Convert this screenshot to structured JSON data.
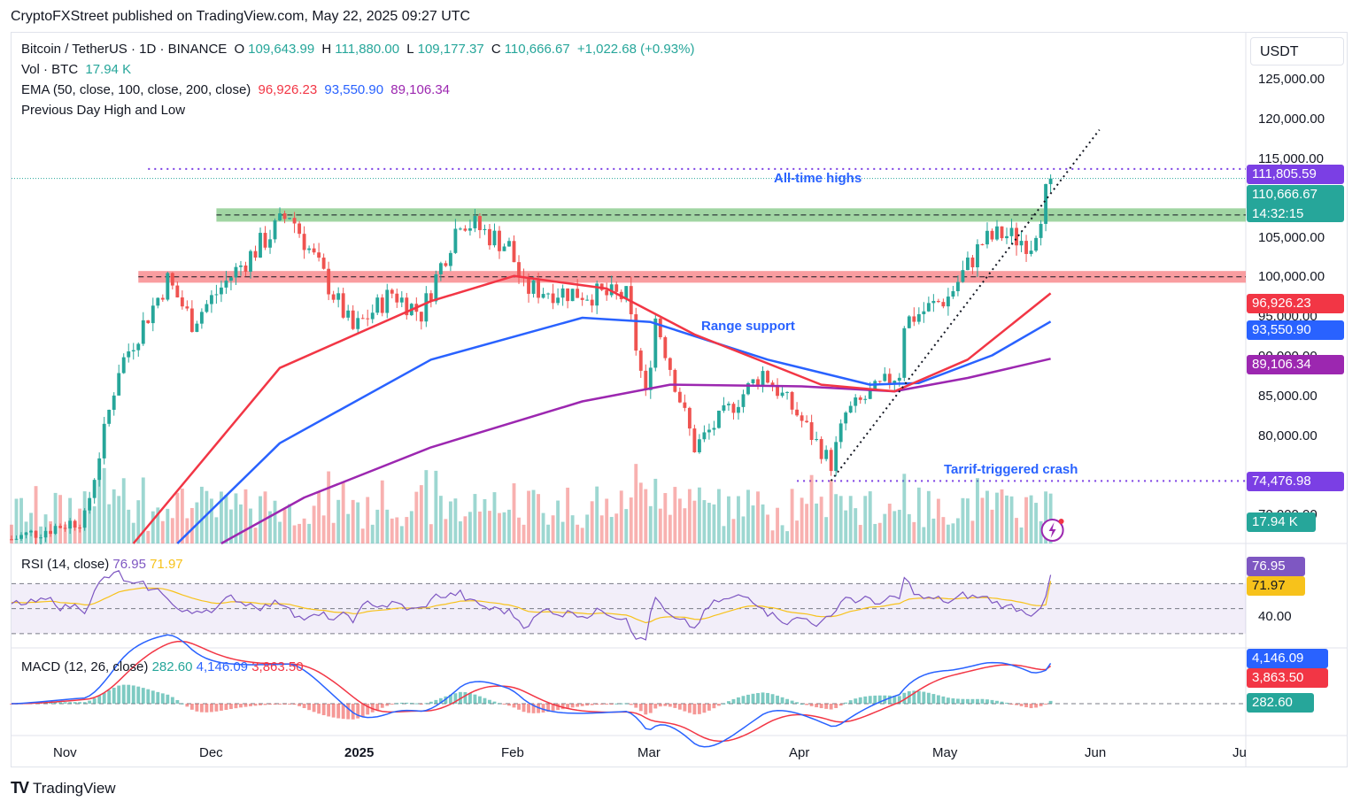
{
  "publisher": "CryptoFXStreet published on TradingView.com, May 22, 2025 09:27 UTC",
  "header": {
    "symbol": "Bitcoin / TetherUS · 1D · BINANCE",
    "open_label": "O",
    "open": "109,643.99",
    "high_label": "H",
    "high": "111,880.00",
    "low_label": "L",
    "low": "109,177.37",
    "close_label": "C",
    "close": "110,666.67",
    "change": "+1,022.68 (+0.93%)",
    "vol_label": "Vol · BTC",
    "vol": "17.94 K",
    "ema_label": "EMA (50, close, 100, close, 200, close)",
    "ema50": "96,926.23",
    "ema100": "93,550.90",
    "ema200": "89,106.34",
    "pdhl_label": "Previous Day High and Low"
  },
  "currency": "USDT",
  "annotations": {
    "ath": "All-time highs",
    "range_support": "Range support",
    "crash": "Tarrif-triggered crash"
  },
  "price_axis": {
    "ticks": [
      "125,000.00",
      "120,000.00",
      "115,000.00",
      "105,000.00",
      "100,000.00",
      "95,000.00",
      "90,000.00",
      "85,000.00",
      "80,000.00",
      "70,000.00"
    ],
    "pills": {
      "ath": "111,805.59",
      "last": "110,666.67",
      "countdown": "14:32:15",
      "ema50": "96,926.23",
      "ema100": "93,550.90",
      "ema200": "89,106.34",
      "crash": "74,476.98",
      "volume": "17.94 K"
    }
  },
  "rsi": {
    "label": "RSI (14, close)",
    "value": "76.95",
    "ma": "71.97",
    "tick": "40.00"
  },
  "macd": {
    "label": "MACD (12, 26, close)",
    "hist": "282.60",
    "macd": "4,146.09",
    "signal": "3,863.50"
  },
  "time_axis": [
    "Nov",
    "Dec",
    "2025",
    "Feb",
    "Mar",
    "Apr",
    "May",
    "Jun",
    "Ju"
  ],
  "footer": {
    "logo": "TV",
    "brand": "TradingView"
  },
  "colors": {
    "up": "#26a69a",
    "down": "#ef5350",
    "ema50": "#f23645",
    "ema100": "#2962ff",
    "ema200": "#9c27b0",
    "rsi": "#7e57c2",
    "rsi_ma": "#f7c21b",
    "macd": "#2962ff",
    "signal": "#f23645"
  },
  "chart_data": {
    "type": "candlestick",
    "x_range": [
      "2024-10-21",
      "2025-07-01"
    ],
    "y_range": [
      67000,
      128000
    ],
    "levels": {
      "ath": 111805.59,
      "resistance_zone": [
        105500,
        107100
      ],
      "support_zone": [
        98200,
        99600
      ],
      "crash_low": 74476.98
    },
    "trendline": [
      {
        "date": "2025-04-07",
        "price": 74500
      },
      {
        "date": "2025-06-01",
        "price": 116500
      }
    ],
    "anchors": [
      {
        "date": "2024-10-21",
        "price": 67500
      },
      {
        "date": "2024-11-05",
        "price": 70000
      },
      {
        "date": "2024-11-12",
        "price": 88000
      },
      {
        "date": "2024-11-22",
        "price": 98500
      },
      {
        "date": "2024-11-27",
        "price": 93500
      },
      {
        "date": "2024-12-05",
        "price": 99000
      },
      {
        "date": "2024-12-17",
        "price": 106500
      },
      {
        "date": "2024-12-30",
        "price": 92500
      },
      {
        "date": "2025-01-07",
        "price": 97000
      },
      {
        "date": "2025-01-13",
        "price": 94500
      },
      {
        "date": "2025-01-21",
        "price": 106000
      },
      {
        "date": "2025-01-31",
        "price": 102500
      },
      {
        "date": "2025-02-03",
        "price": 97500
      },
      {
        "date": "2025-02-24",
        "price": 96500
      },
      {
        "date": "2025-02-28",
        "price": 84500
      },
      {
        "date": "2025-03-02",
        "price": 94000
      },
      {
        "date": "2025-03-10",
        "price": 78500
      },
      {
        "date": "2025-03-24",
        "price": 87500
      },
      {
        "date": "2025-03-31",
        "price": 82500
      },
      {
        "date": "2025-04-07",
        "price": 76500
      },
      {
        "date": "2025-04-10",
        "price": 82500
      },
      {
        "date": "2025-04-21",
        "price": 87500
      },
      {
        "date": "2025-04-22",
        "price": 93500
      },
      {
        "date": "2025-05-01",
        "price": 96500
      },
      {
        "date": "2025-05-08",
        "price": 103000
      },
      {
        "date": "2025-05-12",
        "price": 104000
      },
      {
        "date": "2025-05-18",
        "price": 103000
      },
      {
        "date": "2025-05-20",
        "price": 106800
      },
      {
        "date": "2025-05-22",
        "price": 110666.67
      }
    ],
    "ema50": [
      {
        "date": "2024-11-15",
        "price": 67000
      },
      {
        "date": "2024-12-15",
        "price": 88000
      },
      {
        "date": "2025-01-15",
        "price": 96000
      },
      {
        "date": "2025-02-01",
        "price": 99000
      },
      {
        "date": "2025-02-20",
        "price": 97500
      },
      {
        "date": "2025-03-10",
        "price": 92000
      },
      {
        "date": "2025-04-05",
        "price": 86000
      },
      {
        "date": "2025-04-20",
        "price": 85200
      },
      {
        "date": "2025-05-05",
        "price": 89000
      },
      {
        "date": "2025-05-22",
        "price": 96926.23
      }
    ],
    "ema100": [
      {
        "date": "2024-11-24",
        "price": 67000
      },
      {
        "date": "2024-12-15",
        "price": 79000
      },
      {
        "date": "2025-01-15",
        "price": 89000
      },
      {
        "date": "2025-02-15",
        "price": 94000
      },
      {
        "date": "2025-03-01",
        "price": 93500
      },
      {
        "date": "2025-03-25",
        "price": 89000
      },
      {
        "date": "2025-04-15",
        "price": 86000
      },
      {
        "date": "2025-04-25",
        "price": 86200
      },
      {
        "date": "2025-05-10",
        "price": 89500
      },
      {
        "date": "2025-05-22",
        "price": 93550.9
      }
    ],
    "ema200": [
      {
        "date": "2024-12-03",
        "price": 67000
      },
      {
        "date": "2024-12-20",
        "price": 72500
      },
      {
        "date": "2025-01-15",
        "price": 78500
      },
      {
        "date": "2025-02-15",
        "price": 84000
      },
      {
        "date": "2025-03-05",
        "price": 86000
      },
      {
        "date": "2025-04-01",
        "price": 85800
      },
      {
        "date": "2025-04-20",
        "price": 85200
      },
      {
        "date": "2025-05-05",
        "price": 86800
      },
      {
        "date": "2025-05-22",
        "price": 89106.34
      }
    ],
    "rsi": {
      "range": [
        20,
        95
      ],
      "band": [
        30,
        70
      ],
      "last": 76.95,
      "ma_last": 71.97
    },
    "macd": {
      "last_macd": 4146.09,
      "last_signal": 3863.5,
      "last_hist": 282.6
    }
  }
}
